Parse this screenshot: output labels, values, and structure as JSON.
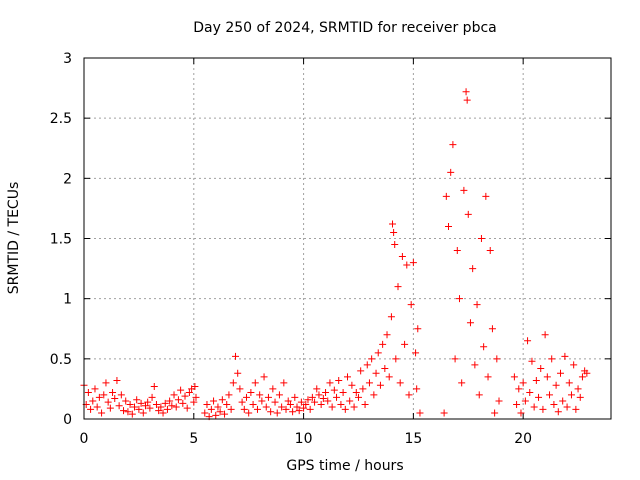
{
  "chart_data": {
    "type": "scatter",
    "title": "Day 250 of 2024, SRMTID for receiver pbca",
    "xlabel": "GPS time / hours",
    "ylabel": "SRMTID / TECUs",
    "xlim": [
      0,
      24
    ],
    "ylim": [
      0,
      3
    ],
    "x_ticks": [
      "0",
      "5",
      "10",
      "15",
      "20"
    ],
    "x_tick_values": [
      0,
      5,
      10,
      15,
      20
    ],
    "y_ticks": [
      "0",
      "0.5",
      "1",
      "1.5",
      "2",
      "2.5",
      "3"
    ],
    "y_tick_values": [
      0,
      0.5,
      1,
      1.5,
      2,
      2.5,
      3
    ],
    "grid": true,
    "marker": "plus",
    "colors": {
      "series": "#ff0000",
      "grid": "#a0a0a0",
      "axis": "#000000"
    },
    "series": [
      {
        "name": "SRMTID",
        "points": [
          [
            0.0,
            0.28
          ],
          [
            0.1,
            0.12
          ],
          [
            0.2,
            0.22
          ],
          [
            0.3,
            0.08
          ],
          [
            0.4,
            0.15
          ],
          [
            0.5,
            0.25
          ],
          [
            0.6,
            0.1
          ],
          [
            0.7,
            0.18
          ],
          [
            0.8,
            0.05
          ],
          [
            0.9,
            0.2
          ],
          [
            1.0,
            0.3
          ],
          [
            1.1,
            0.14
          ],
          [
            1.2,
            0.09
          ],
          [
            1.3,
            0.22
          ],
          [
            1.4,
            0.17
          ],
          [
            1.5,
            0.32
          ],
          [
            1.6,
            0.11
          ],
          [
            1.7,
            0.2
          ],
          [
            1.8,
            0.07
          ],
          [
            1.9,
            0.15
          ],
          [
            2.0,
            0.06
          ],
          [
            2.1,
            0.12
          ],
          [
            2.2,
            0.04
          ],
          [
            2.3,
            0.1
          ],
          [
            2.4,
            0.16
          ],
          [
            2.5,
            0.08
          ],
          [
            2.6,
            0.13
          ],
          [
            2.7,
            0.05
          ],
          [
            2.8,
            0.11
          ],
          [
            2.9,
            0.14
          ],
          [
            3.0,
            0.09
          ],
          [
            3.1,
            0.18
          ],
          [
            3.2,
            0.27
          ],
          [
            3.3,
            0.12
          ],
          [
            3.4,
            0.07
          ],
          [
            3.5,
            0.1
          ],
          [
            3.6,
            0.05
          ],
          [
            3.7,
            0.13
          ],
          [
            3.8,
            0.08
          ],
          [
            3.9,
            0.15
          ],
          [
            4.0,
            0.11
          ],
          [
            4.1,
            0.2
          ],
          [
            4.2,
            0.1
          ],
          [
            4.3,
            0.16
          ],
          [
            4.4,
            0.24
          ],
          [
            4.5,
            0.13
          ],
          [
            4.6,
            0.19
          ],
          [
            4.7,
            0.09
          ],
          [
            4.8,
            0.22
          ],
          [
            4.9,
            0.25
          ],
          [
            5.0,
            0.14
          ],
          [
            5.05,
            0.27
          ],
          [
            5.1,
            0.18
          ],
          [
            5.5,
            0.05
          ],
          [
            5.6,
            0.12
          ],
          [
            5.7,
            0.02
          ],
          [
            5.8,
            0.08
          ],
          [
            5.9,
            0.15
          ],
          [
            6.0,
            0.03
          ],
          [
            6.1,
            0.1
          ],
          [
            6.2,
            0.06
          ],
          [
            6.3,
            0.16
          ],
          [
            6.4,
            0.04
          ],
          [
            6.5,
            0.12
          ],
          [
            6.6,
            0.2
          ],
          [
            6.7,
            0.08
          ],
          [
            6.8,
            0.3
          ],
          [
            6.9,
            0.52
          ],
          [
            7.0,
            0.38
          ],
          [
            7.1,
            0.25
          ],
          [
            7.2,
            0.14
          ],
          [
            7.3,
            0.08
          ],
          [
            7.4,
            0.18
          ],
          [
            7.5,
            0.05
          ],
          [
            7.6,
            0.22
          ],
          [
            7.7,
            0.12
          ],
          [
            7.8,
            0.3
          ],
          [
            7.9,
            0.08
          ],
          [
            8.0,
            0.2
          ],
          [
            8.1,
            0.15
          ],
          [
            8.2,
            0.35
          ],
          [
            8.3,
            0.1
          ],
          [
            8.4,
            0.18
          ],
          [
            8.5,
            0.06
          ],
          [
            8.6,
            0.25
          ],
          [
            8.7,
            0.14
          ],
          [
            8.8,
            0.05
          ],
          [
            8.9,
            0.2
          ],
          [
            9.0,
            0.1
          ],
          [
            9.1,
            0.3
          ],
          [
            9.2,
            0.08
          ],
          [
            9.3,
            0.15
          ],
          [
            9.4,
            0.12
          ],
          [
            9.5,
            0.06
          ],
          [
            9.6,
            0.18
          ],
          [
            9.7,
            0.1
          ],
          [
            9.8,
            0.07
          ],
          [
            9.9,
            0.14
          ],
          [
            10.0,
            0.09
          ],
          [
            10.1,
            0.12
          ],
          [
            10.2,
            0.16
          ],
          [
            10.3,
            0.08
          ],
          [
            10.4,
            0.18
          ],
          [
            10.5,
            0.14
          ],
          [
            10.6,
            0.25
          ],
          [
            10.7,
            0.2
          ],
          [
            10.8,
            0.12
          ],
          [
            10.9,
            0.17
          ],
          [
            11.0,
            0.22
          ],
          [
            11.1,
            0.15
          ],
          [
            11.2,
            0.3
          ],
          [
            11.3,
            0.1
          ],
          [
            11.4,
            0.24
          ],
          [
            11.5,
            0.18
          ],
          [
            11.6,
            0.32
          ],
          [
            11.7,
            0.12
          ],
          [
            11.8,
            0.22
          ],
          [
            11.9,
            0.08
          ],
          [
            12.0,
            0.35
          ],
          [
            12.1,
            0.15
          ],
          [
            12.2,
            0.28
          ],
          [
            12.3,
            0.1
          ],
          [
            12.4,
            0.22
          ],
          [
            12.5,
            0.18
          ],
          [
            12.6,
            0.4
          ],
          [
            12.7,
            0.25
          ],
          [
            12.8,
            0.12
          ],
          [
            12.9,
            0.45
          ],
          [
            13.0,
            0.3
          ],
          [
            13.1,
            0.5
          ],
          [
            13.2,
            0.2
          ],
          [
            13.3,
            0.38
          ],
          [
            13.4,
            0.55
          ],
          [
            13.5,
            0.28
          ],
          [
            13.6,
            0.62
          ],
          [
            13.7,
            0.42
          ],
          [
            13.8,
            0.7
          ],
          [
            13.9,
            0.35
          ],
          [
            14.0,
            0.85
          ],
          [
            14.05,
            1.62
          ],
          [
            14.1,
            1.55
          ],
          [
            14.15,
            1.45
          ],
          [
            14.2,
            0.5
          ],
          [
            14.3,
            1.1
          ],
          [
            14.4,
            0.3
          ],
          [
            14.5,
            1.35
          ],
          [
            14.6,
            0.62
          ],
          [
            14.7,
            1.28
          ],
          [
            14.8,
            0.2
          ],
          [
            14.9,
            0.95
          ],
          [
            15.0,
            1.3
          ],
          [
            15.1,
            0.55
          ],
          [
            15.15,
            0.25
          ],
          [
            15.2,
            0.75
          ],
          [
            15.3,
            0.05
          ],
          [
            16.4,
            0.05
          ],
          [
            16.5,
            1.85
          ],
          [
            16.6,
            1.6
          ],
          [
            16.7,
            2.05
          ],
          [
            16.8,
            2.28
          ],
          [
            16.9,
            0.5
          ],
          [
            17.0,
            1.4
          ],
          [
            17.1,
            1.0
          ],
          [
            17.2,
            0.3
          ],
          [
            17.3,
            1.9
          ],
          [
            17.4,
            2.72
          ],
          [
            17.45,
            2.65
          ],
          [
            17.5,
            1.7
          ],
          [
            17.6,
            0.8
          ],
          [
            17.7,
            1.25
          ],
          [
            17.8,
            0.45
          ],
          [
            17.9,
            0.95
          ],
          [
            18.0,
            0.2
          ],
          [
            18.1,
            1.5
          ],
          [
            18.2,
            0.6
          ],
          [
            18.3,
            1.85
          ],
          [
            18.4,
            0.35
          ],
          [
            18.5,
            1.4
          ],
          [
            18.6,
            0.75
          ],
          [
            18.7,
            0.05
          ],
          [
            18.8,
            0.5
          ],
          [
            18.9,
            0.15
          ],
          [
            19.6,
            0.35
          ],
          [
            19.7,
            0.12
          ],
          [
            19.8,
            0.25
          ],
          [
            19.9,
            0.05
          ],
          [
            20.0,
            0.3
          ],
          [
            20.1,
            0.15
          ],
          [
            20.2,
            0.65
          ],
          [
            20.3,
            0.22
          ],
          [
            20.4,
            0.48
          ],
          [
            20.5,
            0.1
          ],
          [
            20.6,
            0.32
          ],
          [
            20.7,
            0.18
          ],
          [
            20.8,
            0.42
          ],
          [
            20.9,
            0.08
          ],
          [
            21.0,
            0.7
          ],
          [
            21.1,
            0.35
          ],
          [
            21.2,
            0.2
          ],
          [
            21.3,
            0.5
          ],
          [
            21.4,
            0.12
          ],
          [
            21.5,
            0.28
          ],
          [
            21.6,
            0.06
          ],
          [
            21.7,
            0.38
          ],
          [
            21.8,
            0.15
          ],
          [
            21.9,
            0.52
          ],
          [
            22.0,
            0.1
          ],
          [
            22.1,
            0.3
          ],
          [
            22.2,
            0.2
          ],
          [
            22.3,
            0.45
          ],
          [
            22.4,
            0.08
          ],
          [
            22.5,
            0.25
          ],
          [
            22.6,
            0.18
          ],
          [
            22.7,
            0.35
          ],
          [
            22.8,
            0.4
          ],
          [
            22.9,
            0.38
          ]
        ]
      }
    ]
  }
}
